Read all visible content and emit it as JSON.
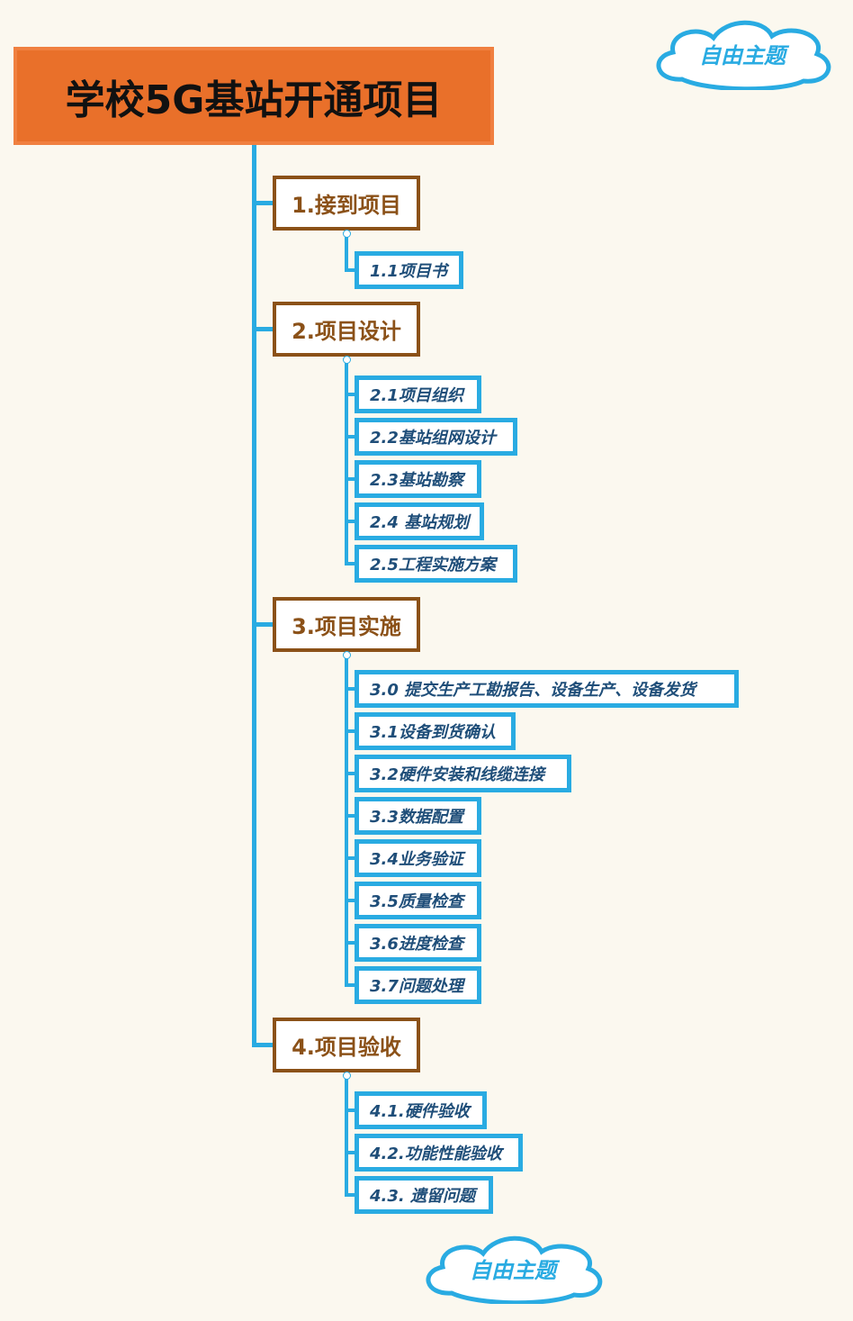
{
  "root": {
    "title": "学校5G基站开通项目"
  },
  "branches": [
    {
      "label": "1.接到项目",
      "children": [
        "1.1项目书"
      ]
    },
    {
      "label": "2.项目设计",
      "children": [
        "2.1项目组织",
        "2.2基站组网设计",
        "2.3基站勘察",
        "2.4 基站规划",
        "2.5工程实施方案"
      ]
    },
    {
      "label": "3.项目实施",
      "children": [
        "3.0 提交生产工勘报告、设备生产、设备发货",
        "3.1设备到货确认",
        "3.2硬件安装和线缆连接",
        "3.3数据配置",
        "3.4业务验证",
        "3.5质量检查",
        "3.6进度检查",
        "3.7问题处理"
      ]
    },
    {
      "label": "4.项目验收",
      "children": [
        "4.1.硬件验收",
        "4.2.功能性能验收",
        "4.3. 遗留问题"
      ]
    }
  ],
  "floating": [
    "自由主题",
    "自由主题"
  ],
  "colors": {
    "root": "#e9702a",
    "branch_border": "#8b5118",
    "sub_border": "#29abe2",
    "sub_text": "#1f4e79"
  }
}
